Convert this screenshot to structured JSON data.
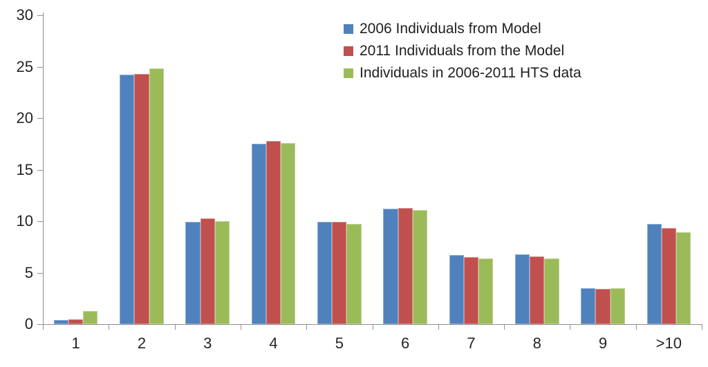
{
  "chart_data": {
    "type": "bar",
    "title": "",
    "xlabel": "",
    "ylabel": "",
    "categories": [
      "1",
      "2",
      "3",
      "4",
      "5",
      "6",
      "7",
      "8",
      "9",
      ">10"
    ],
    "series": [
      {
        "name": "2006 Individuals from Model",
        "color": "#4F81BD",
        "values": [
          0.4,
          24.2,
          9.9,
          17.5,
          9.9,
          11.2,
          6.7,
          6.8,
          3.5,
          9.7
        ]
      },
      {
        "name": "2011 Individuals from the Model",
        "color": "#C0504D",
        "values": [
          0.5,
          24.3,
          10.3,
          17.8,
          9.9,
          11.3,
          6.5,
          6.6,
          3.4,
          9.3
        ]
      },
      {
        "name": "Individuals in 2006-2011 HTS data",
        "color": "#9BBB59",
        "values": [
          1.3,
          24.8,
          10.0,
          17.6,
          9.7,
          11.1,
          6.4,
          6.4,
          3.5,
          8.9
        ]
      }
    ],
    "ylim": [
      0,
      30
    ],
    "yticks": [
      0,
      5,
      10,
      15,
      20,
      25,
      30
    ],
    "grid": false,
    "legend_position": "top-right",
    "axis_color": "#8F8F8F",
    "tick_label_color": "#242424"
  }
}
